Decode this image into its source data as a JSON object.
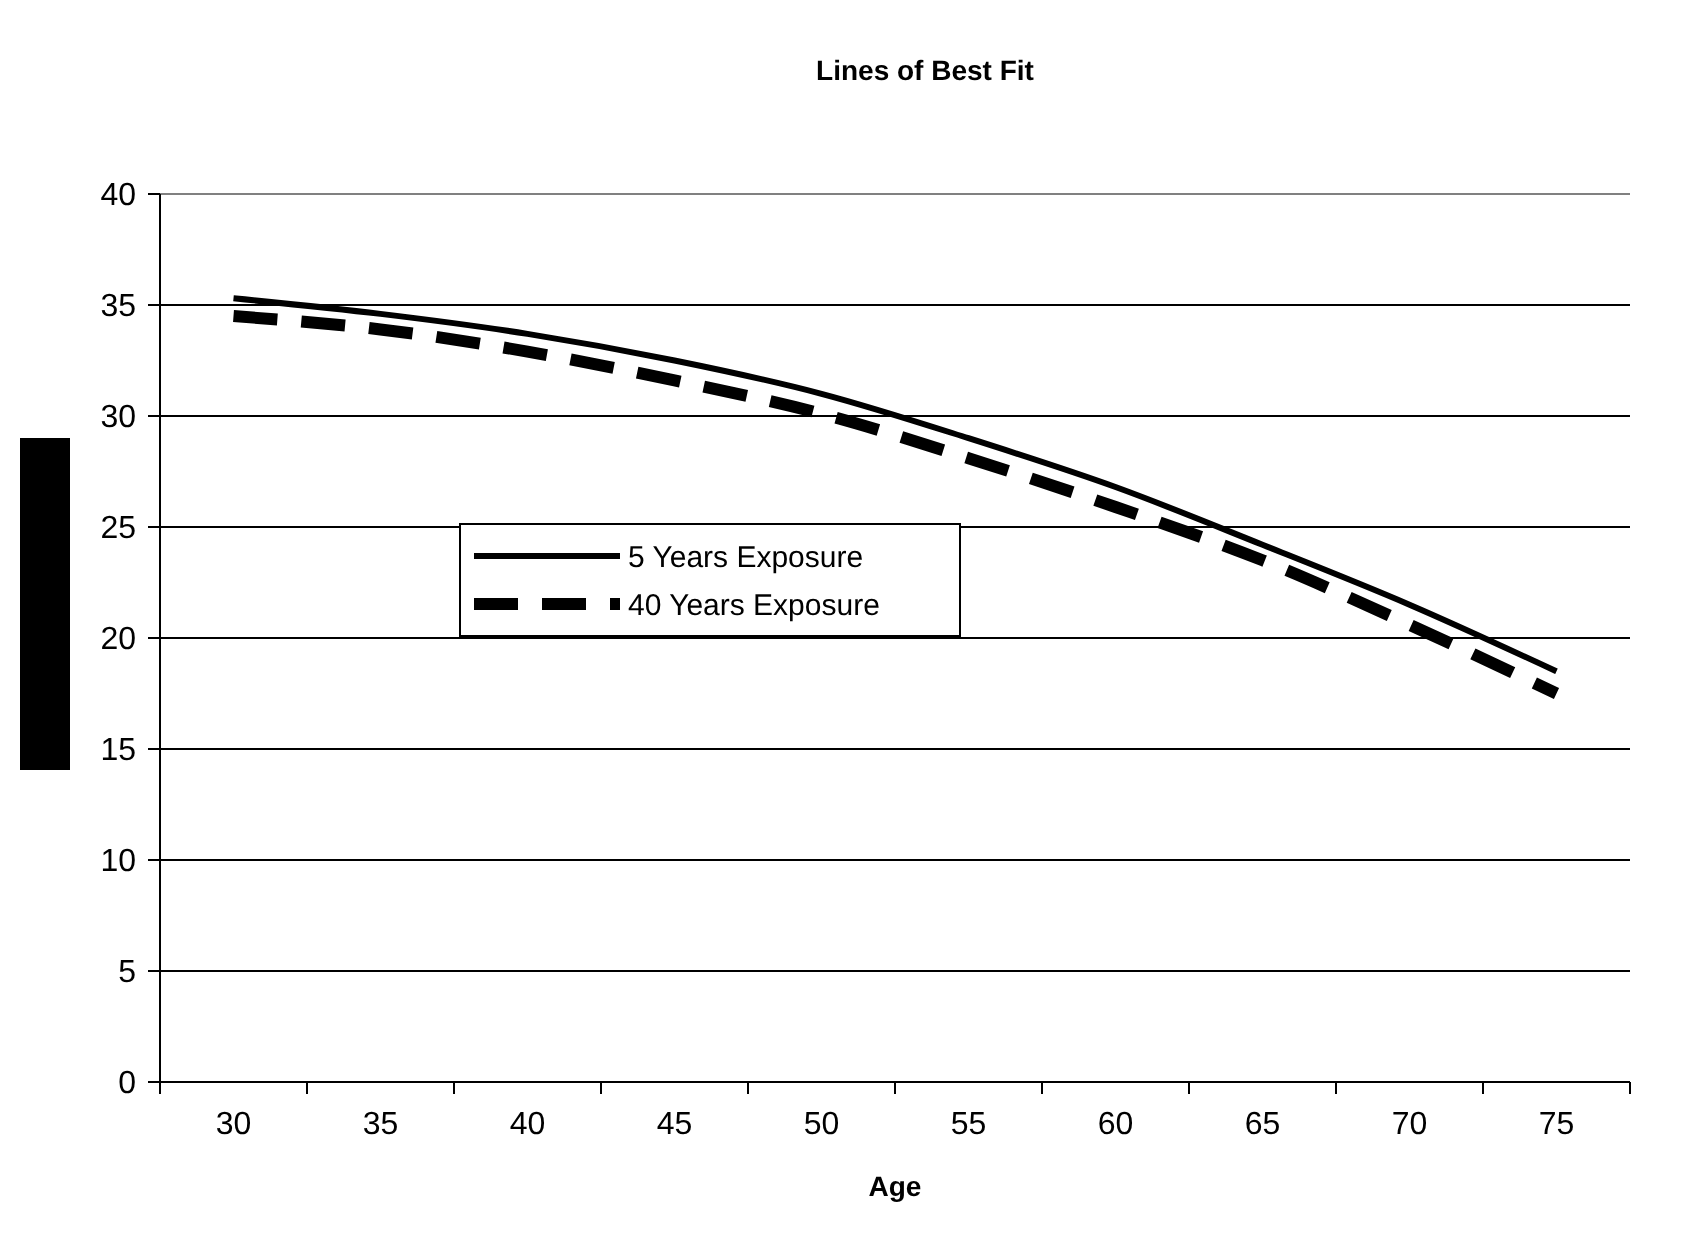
{
  "chart_data": {
    "type": "line",
    "title": "Lines of Best Fit",
    "xlabel": "Age",
    "categories": [
      "30",
      "35",
      "40",
      "45",
      "50",
      "55",
      "60",
      "65",
      "70",
      "75"
    ],
    "series": [
      {
        "name": "5 Years Exposure",
        "color": "#000000",
        "line_style": "solid",
        "values": [
          35.3,
          34.6,
          33.7,
          32.5,
          31.0,
          29.0,
          26.8,
          24.2,
          21.5,
          18.5
        ]
      },
      {
        "name": "40 Years Exposure",
        "color": "#000000",
        "line_style": "dashed",
        "values": [
          34.5,
          33.9,
          32.9,
          31.6,
          30.1,
          28.1,
          25.9,
          23.5,
          20.6,
          17.5
        ]
      }
    ],
    "ylim": [
      0,
      40
    ],
    "yticks": [
      0,
      5,
      10,
      15,
      20,
      25,
      30,
      35,
      40
    ],
    "grid": "y",
    "legend": "center",
    "marker": "none"
  }
}
